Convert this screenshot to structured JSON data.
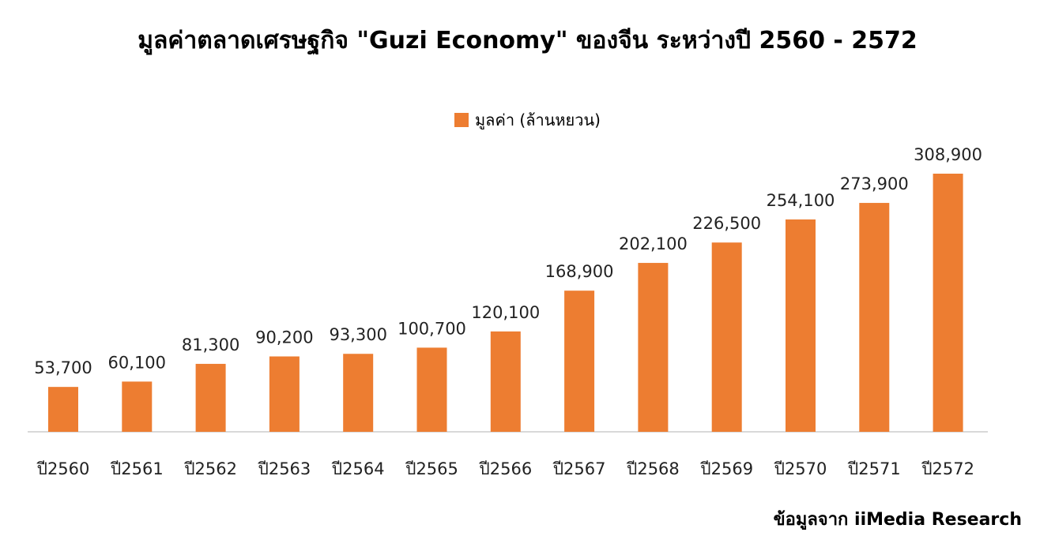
{
  "title": "มูลค่าตลาดเศรษฐกิจ \"Guzi Economy\" ของจีน ระหว่างปี 2560 - 2572",
  "source": "ข้อมูลจาก iiMedia Research",
  "colors": {
    "bar": "#ED7D31",
    "axis": "#D9D9D9"
  },
  "chart_data": {
    "type": "bar",
    "title": "มูลค่าตลาดเศรษฐกิจ \"Guzi Economy\" ของจีน ระหว่างปี 2560 - 2572",
    "xlabel": "",
    "ylabel": "",
    "categories": [
      "ปี2560",
      "ปี2561",
      "ปี2562",
      "ปี2563",
      "ปี2564",
      "ปี2565",
      "ปี2566",
      "ปี2567",
      "ปี2568",
      "ปี2569",
      "ปี2570",
      "ปี2571",
      "ปี2572"
    ],
    "series": [
      {
        "name": "มูลค่า (ล้านหยวน)",
        "values": [
          53700,
          60100,
          81300,
          90200,
          93300,
          100700,
          120100,
          168900,
          202100,
          226500,
          254100,
          273900,
          308900
        ],
        "labels": [
          "53,700",
          "60,100",
          "81,300",
          "90,200",
          "93,300",
          "100,700",
          "120,100",
          "168,900",
          "202,100",
          "226,500",
          "254,100",
          "273,900",
          "308,900"
        ]
      }
    ],
    "ylim": [
      0,
      308900
    ],
    "grid": false,
    "legend": "top-center"
  }
}
